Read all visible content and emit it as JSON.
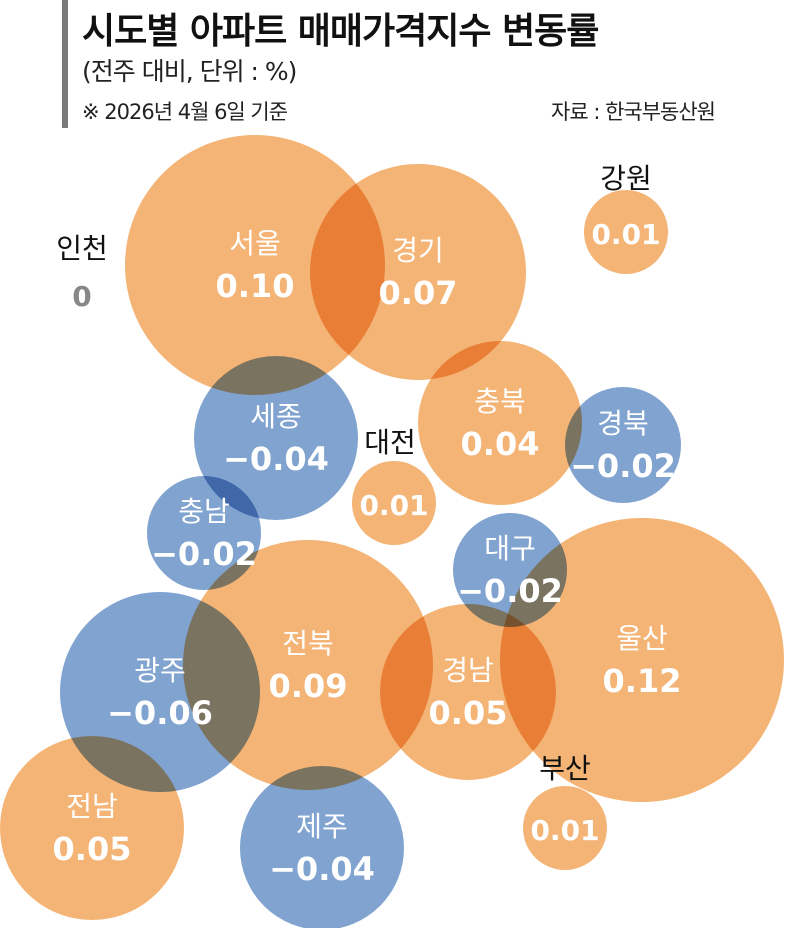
{
  "header": {
    "title": "시도별 아파트 매매가격지수 변동률",
    "subtitle": "(전주 대비, 단위 : %)",
    "note": "※ 2026년 4월 6일 기준",
    "source": "자료 : 한국부동산원"
  },
  "colors": {
    "positive": "#F4B476",
    "negative": "#80A3D0",
    "zero": "#888888",
    "label_outside": "#111111"
  },
  "chart_data": {
    "type": "bubble",
    "title": "시도별 아파트 매매가격지수 변동률",
    "unit": "%",
    "points": [
      {
        "region": "서울",
        "value": "0.10"
      },
      {
        "region": "경기",
        "value": "0.07"
      },
      {
        "region": "강원",
        "value": "0.01"
      },
      {
        "region": "인천",
        "value": "0"
      },
      {
        "region": "세종",
        "value": "−0.04"
      },
      {
        "region": "충북",
        "value": "0.04"
      },
      {
        "region": "경북",
        "value": "−0.02"
      },
      {
        "region": "대전",
        "value": "0.01"
      },
      {
        "region": "충남",
        "value": "−0.02"
      },
      {
        "region": "대구",
        "value": "−0.02"
      },
      {
        "region": "울산",
        "value": "0.12"
      },
      {
        "region": "전북",
        "value": "0.09"
      },
      {
        "region": "광주",
        "value": "−0.06"
      },
      {
        "region": "경남",
        "value": "0.05"
      },
      {
        "region": "전남",
        "value": "0.05"
      },
      {
        "region": "제주",
        "value": "−0.04"
      },
      {
        "region": "부산",
        "value": "0.01"
      }
    ]
  }
}
